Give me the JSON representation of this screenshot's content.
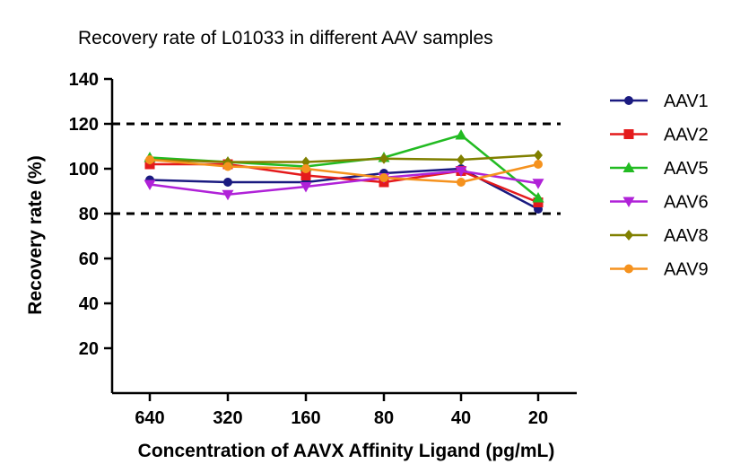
{
  "chart_data": {
    "type": "line",
    "title": "Recovery rate of L01033 in different AAV samples",
    "xlabel": "Concentration of AAVX Affinity Ligand (pg/mL)",
    "ylabel": "Recovery rate (%)",
    "categories": [
      "640",
      "320",
      "160",
      "80",
      "40",
      "20"
    ],
    "ylim": [
      0,
      140
    ],
    "yticks": [
      "20",
      "40",
      "60",
      "80",
      "100",
      "120",
      "140"
    ],
    "reference_lines": [
      80,
      120
    ],
    "grid": false,
    "legend_position": "right",
    "series": [
      {
        "name": "AAV1",
        "color": "#1a1a80",
        "marker": "circle",
        "values": [
          95,
          94,
          94,
          98,
          100,
          82
        ]
      },
      {
        "name": "AAV2",
        "color": "#e41a1c",
        "marker": "square",
        "values": [
          102,
          102,
          97,
          94,
          99,
          85
        ]
      },
      {
        "name": "AAV5",
        "color": "#22bb22",
        "marker": "triangle-up",
        "values": [
          105,
          103,
          101,
          105,
          115,
          87
        ]
      },
      {
        "name": "AAV6",
        "color": "#b022d8",
        "marker": "triangle-down",
        "values": [
          93,
          88.5,
          92,
          96,
          99,
          93.5
        ]
      },
      {
        "name": "AAV8",
        "color": "#808000",
        "marker": "diamond",
        "values": [
          104,
          103,
          103,
          104.5,
          104,
          106
        ]
      },
      {
        "name": "AAV9",
        "color": "#f5921e",
        "marker": "circle",
        "values": [
          104,
          101,
          100,
          96,
          94,
          102
        ]
      }
    ]
  }
}
